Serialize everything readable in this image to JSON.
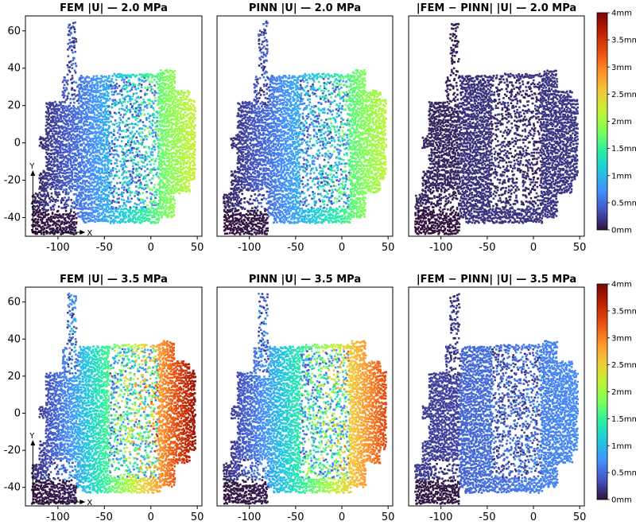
{
  "colors": {
    "background": "#ffffff",
    "axes": "#000000",
    "colormap": [
      "#30123b",
      "#4454c4",
      "#4490fe",
      "#1fc8de",
      "#29efa2",
      "#7dff56",
      "#c1f334",
      "#f1ca3a",
      "#fe922a",
      "#ea4f0d",
      "#be2102",
      "#7a0403"
    ]
  },
  "chart_data": [
    {
      "type": "scatter",
      "title": "FEM |U| — 2.0 MPa",
      "field": "fem",
      "pressure_mpa": 2.0,
      "xlim": [
        -135,
        55
      ],
      "ylim": [
        -50,
        68
      ],
      "xticks": [
        -100,
        -50,
        0,
        50
      ],
      "yticks": [
        -40,
        -20,
        0,
        20,
        40,
        60
      ],
      "inset_axes": {
        "x": "X",
        "y": "Y"
      },
      "grid": false,
      "displacement_mm": {
        "min": 0.0,
        "max_approx": 2.3
      }
    },
    {
      "type": "scatter",
      "title": "PINN |U| — 2.0 MPa",
      "field": "pinn",
      "pressure_mpa": 2.0,
      "xlim": [
        -135,
        55
      ],
      "ylim": [
        -50,
        68
      ],
      "xticks": [
        -100,
        -50,
        0,
        50
      ],
      "yticks": [],
      "grid": false,
      "displacement_mm": {
        "min": 0.0,
        "max_approx": 2.2
      }
    },
    {
      "type": "scatter",
      "title": "|FEM − PINN| |U| — 2.0 MPa",
      "field": "error",
      "pressure_mpa": 2.0,
      "xlim": [
        -135,
        55
      ],
      "ylim": [
        -50,
        68
      ],
      "xticks": [
        -100,
        -50,
        0,
        50
      ],
      "yticks": [],
      "grid": false,
      "displacement_mm": {
        "min": 0.0,
        "max_approx": 0.2
      },
      "colorbar": {
        "min": 0,
        "max": 4,
        "ticks": [
          "0mm",
          "0.5mm",
          "1mm",
          "1.5mm",
          "2mm",
          "2.5mm",
          "3mm",
          "3.5mm",
          "4mm"
        ]
      }
    },
    {
      "type": "scatter",
      "title": "FEM |U| — 3.5 MPa",
      "field": "fem",
      "pressure_mpa": 3.5,
      "xlim": [
        -135,
        55
      ],
      "ylim": [
        -50,
        68
      ],
      "xticks": [
        -100,
        -50,
        0,
        50
      ],
      "yticks": [
        -40,
        -20,
        0,
        20,
        40,
        60
      ],
      "inset_axes": {
        "x": "X",
        "y": "Y"
      },
      "grid": false,
      "displacement_mm": {
        "min": 0.0,
        "max_approx": 3.9
      }
    },
    {
      "type": "scatter",
      "title": "PINN |U| — 3.5 MPa",
      "field": "pinn",
      "pressure_mpa": 3.5,
      "xlim": [
        -135,
        55
      ],
      "ylim": [
        -50,
        68
      ],
      "xticks": [
        -100,
        -50,
        0,
        50
      ],
      "yticks": [],
      "grid": false,
      "displacement_mm": {
        "min": 0.0,
        "max_approx": 3.4
      }
    },
    {
      "type": "scatter",
      "title": "|FEM − PINN| |U| — 3.5 MPa",
      "field": "error",
      "pressure_mpa": 3.5,
      "xlim": [
        -135,
        55
      ],
      "ylim": [
        -50,
        68
      ],
      "xticks": [
        -100,
        -50,
        0,
        50
      ],
      "yticks": [],
      "grid": false,
      "displacement_mm": {
        "min": 0.0,
        "max_approx": 0.6
      },
      "colorbar": {
        "min": 0,
        "max": 4,
        "ticks": [
          "0mm",
          "0.5mm",
          "1mm",
          "1.5mm",
          "2mm",
          "2.5mm",
          "3mm",
          "3.5mm",
          "4mm"
        ]
      }
    }
  ]
}
